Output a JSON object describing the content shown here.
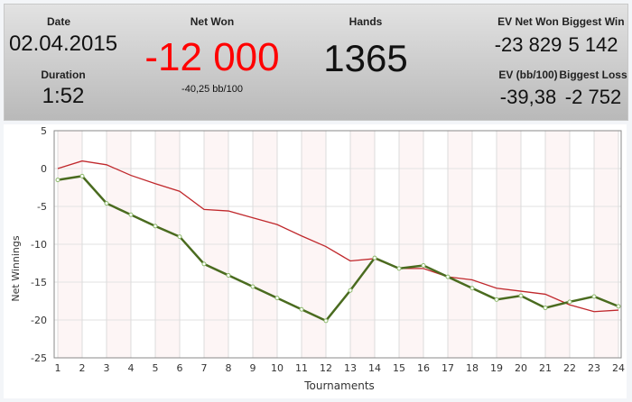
{
  "header": {
    "date_label": "Date",
    "date": "02.04.2015",
    "duration_label": "Duration",
    "duration": "1:52",
    "net_won_label": "Net Won",
    "net_won": "-12 000",
    "net_won_bb": "-40,25 bb/100",
    "hands_label": "Hands",
    "hands": "1365",
    "ev_net_won_label": "EV Net Won",
    "ev_net_won": "-23 829",
    "biggest_win_label": "Biggest Win",
    "biggest_win": "5 142",
    "ev_bb_label": "EV (bb/100)",
    "ev_bb": "-39,38",
    "biggest_loss_label": "Biggest Loss",
    "biggest_loss": "-2 752",
    "net_won_color": "#ff0000"
  },
  "chart_data": {
    "type": "line",
    "xlabel": "Tournaments",
    "ylabel": "Net Winnings",
    "x": [
      1,
      2,
      3,
      4,
      5,
      6,
      7,
      8,
      9,
      10,
      11,
      12,
      13,
      14,
      15,
      16,
      17,
      18,
      19,
      20,
      21,
      22,
      23,
      24
    ],
    "ylim": [
      -25,
      5
    ],
    "yticks": [
      5,
      0,
      -5,
      -10,
      -15,
      -20,
      -25
    ],
    "grid": true,
    "series": [
      {
        "color": "#4a6b1f",
        "markers": true,
        "values": [
          -1.5,
          -1.0,
          -4.6,
          -6.1,
          -7.6,
          -9.0,
          -12.6,
          -14.1,
          -15.6,
          -17.1,
          -18.6,
          -20.1,
          -16.1,
          -11.8,
          -13.2,
          -12.8,
          -14.3,
          -15.8,
          -17.3,
          -16.8,
          -18.4,
          -17.6,
          -16.9,
          -18.2
        ]
      },
      {
        "color": "#c0282c",
        "markers": false,
        "values": [
          0,
          1.0,
          0.5,
          -0.9,
          -2.0,
          -3.0,
          -5.4,
          -5.6,
          -6.5,
          -7.4,
          -8.9,
          -10.3,
          -12.2,
          -11.9,
          -13.2,
          -13.2,
          -14.3,
          -14.7,
          -15.8,
          -16.2,
          -16.6,
          -18.0,
          -18.9,
          -18.7
        ]
      }
    ]
  }
}
